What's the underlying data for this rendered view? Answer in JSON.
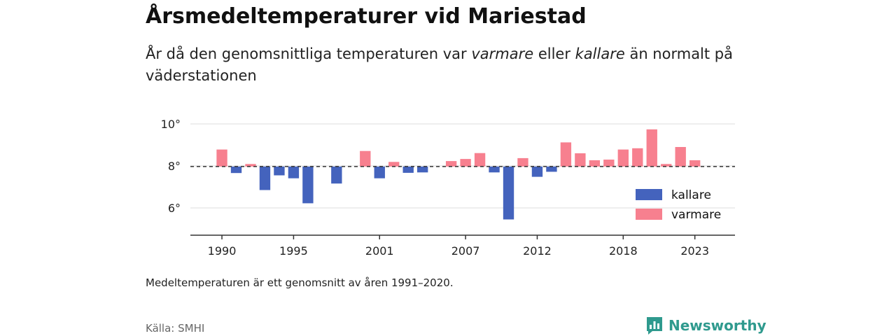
{
  "header": {
    "title": "Årsmedeltemperaturer vid Mariestad",
    "subtitle_part1": "År då den genomsnittliga temperaturen var ",
    "subtitle_warm": "varmare",
    "subtitle_part2": " eller ",
    "subtitle_cold": "kallare",
    "subtitle_part3": " än normalt på väderstationen"
  },
  "footer": {
    "note": "Medeltemperaturen är ett genomsnitt av åren 1991–2020.",
    "source": "Källa: SMHI",
    "brand": "Newsworthy"
  },
  "colors": {
    "kallare": "#4463bd",
    "varmare": "#f7808f",
    "brand": "#2f9a8e"
  },
  "chart_data": {
    "type": "bar",
    "baseline": 7.97,
    "ylim": [
      4.7,
      10.3
    ],
    "yticks": [
      6,
      8,
      10
    ],
    "ytick_labels": [
      "6°",
      "8°",
      "10°"
    ],
    "xticks": [
      1990,
      1995,
      2001,
      2007,
      2012,
      2018,
      2023
    ],
    "xtick_labels": [
      "1990",
      "1995",
      "2001",
      "2007",
      "2012",
      "2018",
      "2023"
    ],
    "xlim": [
      1987.8,
      2025.8
    ],
    "grid": true,
    "legend": {
      "position": "bottom-right",
      "entries": [
        {
          "key": "kallare",
          "label": "kallare"
        },
        {
          "key": "varmare",
          "label": "varmare"
        }
      ]
    },
    "x": [
      1990,
      1991,
      1992,
      1993,
      1994,
      1995,
      1996,
      1997,
      1998,
      1999,
      2000,
      2001,
      2002,
      2003,
      2004,
      2005,
      2006,
      2007,
      2008,
      2009,
      2010,
      2011,
      2012,
      2013,
      2014,
      2015,
      2016,
      2017,
      2018,
      2019,
      2020,
      2021,
      2022,
      2023
    ],
    "values": [
      8.78,
      7.66,
      8.09,
      6.85,
      7.55,
      7.41,
      6.22,
      null,
      7.16,
      null,
      8.71,
      7.41,
      8.19,
      7.67,
      7.69,
      null,
      8.23,
      8.33,
      8.61,
      7.69,
      5.45,
      8.37,
      7.48,
      7.72,
      9.12,
      8.6,
      8.27,
      8.3,
      8.78,
      8.84,
      9.74,
      8.09,
      8.9,
      8.27
    ]
  }
}
